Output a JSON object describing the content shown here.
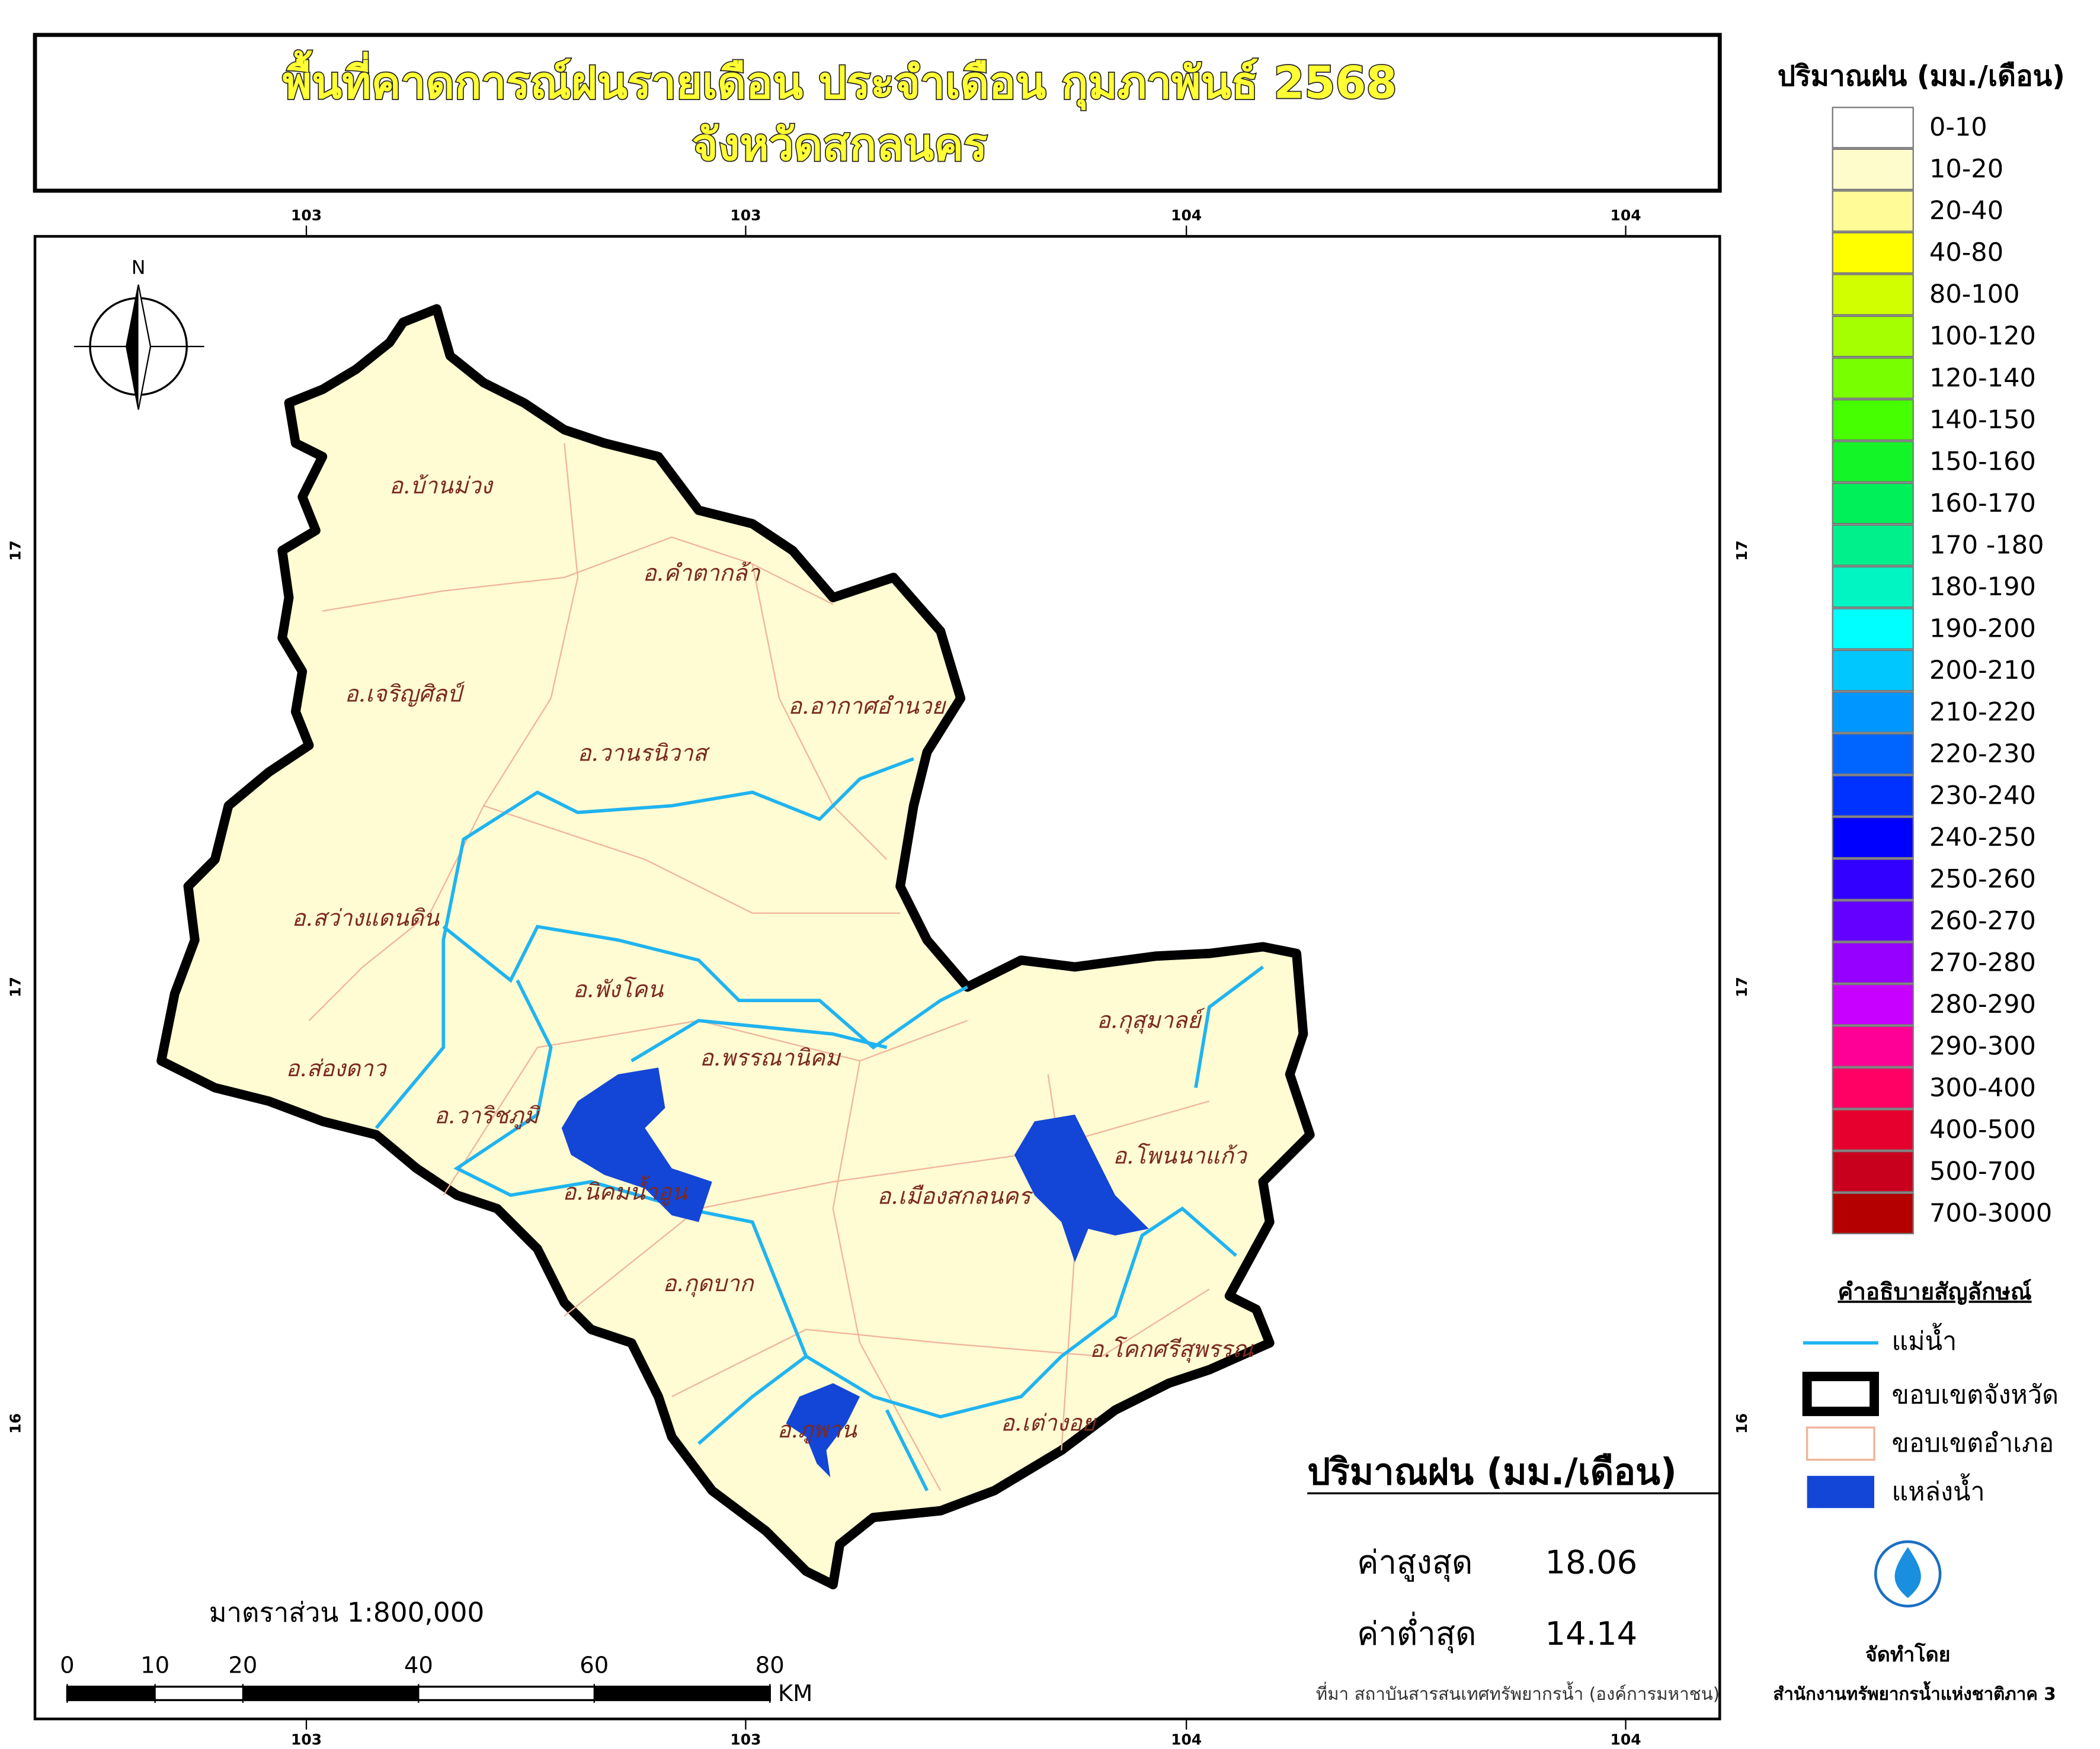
{
  "title": [
    "พื้นที่คาดการณ์ฝนรายเดือน ประจำเดือน กุมภาพันธ์ 2568",
    "จังหวัดสกลนคร"
  ],
  "grid_labels": {
    "top": [
      "103",
      "103",
      "104",
      "104"
    ],
    "bottom": [
      "103",
      "103",
      "104",
      "104"
    ],
    "left": [
      "17",
      "17",
      "16"
    ],
    "right": [
      "17",
      "17",
      "16"
    ]
  },
  "north": "N",
  "districts": [
    "อ.บ้านม่วง",
    "อ.คำตากล้า",
    "อ.เจริญศิลป์",
    "อ.อากาศอำนวย",
    "อ.วานรนิวาส",
    "อ.สว่างแดนดิน",
    "อ.พังโคน",
    "อ.กุสุมาลย์",
    "อ.ส่องดาว",
    "อ.พรรณานิคม",
    "อ.วาริชภูมิ",
    "อ.โพนนาแก้ว",
    "อ.นิคมน้ำอูน",
    "อ.เมืองสกลนคร",
    "อ.กุดบาก",
    "อ.โคกศรีสุพรรณ",
    "อ.ภูพาน",
    "อ.เต่างอย"
  ],
  "legend": {
    "title": "ปริมาณฝน (มม./เดือน)",
    "items": [
      {
        "label": "0-10",
        "color": "#ffffff"
      },
      {
        "label": "10-20",
        "color": "#fffccc"
      },
      {
        "label": "20-40",
        "color": "#fffb96"
      },
      {
        "label": "40-80",
        "color": "#ffff00"
      },
      {
        "label": "80-100",
        "color": "#d2ff00"
      },
      {
        "label": "100-120",
        "color": "#a5ff00"
      },
      {
        "label": "120-140",
        "color": "#78ff00"
      },
      {
        "label": "140-150",
        "color": "#46ff00"
      },
      {
        "label": "150-160",
        "color": "#14f528"
      },
      {
        "label": "160-170",
        "color": "#00f05a"
      },
      {
        "label": "170 -180",
        "color": "#00f08c"
      },
      {
        "label": "180-190",
        "color": "#00f5c3"
      },
      {
        "label": "190-200",
        "color": "#00ffff"
      },
      {
        "label": "200-210",
        "color": "#00c8ff"
      },
      {
        "label": "210-220",
        "color": "#0096ff"
      },
      {
        "label": "220-230",
        "color": "#0064ff"
      },
      {
        "label": "230-240",
        "color": "#0032ff"
      },
      {
        "label": "240-250",
        "color": "#0000ff"
      },
      {
        "label": "250-260",
        "color": "#3200ff"
      },
      {
        "label": "260-270",
        "color": "#6400ff"
      },
      {
        "label": "270-280",
        "color": "#9600ff"
      },
      {
        "label": "280-290",
        "color": "#c800ff"
      },
      {
        "label": "290-300",
        "color": "#ff0096"
      },
      {
        "label": "300-400",
        "color": "#ff0064"
      },
      {
        "label": "400-500",
        "color": "#e6002d"
      },
      {
        "label": "500-700",
        "color": "#c8001e"
      },
      {
        "label": "700-3000",
        "color": "#b40000"
      }
    ]
  },
  "symbols": {
    "title": "คำอธิบายสัญลักษณ์",
    "items": [
      "แม่น้ำ",
      "ขอบเขตจังหวัด",
      "ขอบเขตอำเภอ",
      "แหล่งน้ำ"
    ]
  },
  "stats": {
    "title": "ปริมาณฝน (มม./เดือน)",
    "max_label": "ค่าสูงสุด",
    "max": 18.06,
    "min_label": "ค่าต่ำสุด",
    "min": 14.14
  },
  "scale": {
    "text": "มาตราส่วน 1:800,000",
    "ticks": [
      0,
      10,
      20,
      40,
      60,
      80
    ],
    "unit": "KM"
  },
  "source": "ที่มา  สถาบันสารสนเทศทรัพยากรน้ำ (องค์การมหาชน)",
  "credit": {
    "label": "จัดทำโดย",
    "org": "สำนักงานทรัพยากรน้ำแห่งชาติภาค 3"
  }
}
